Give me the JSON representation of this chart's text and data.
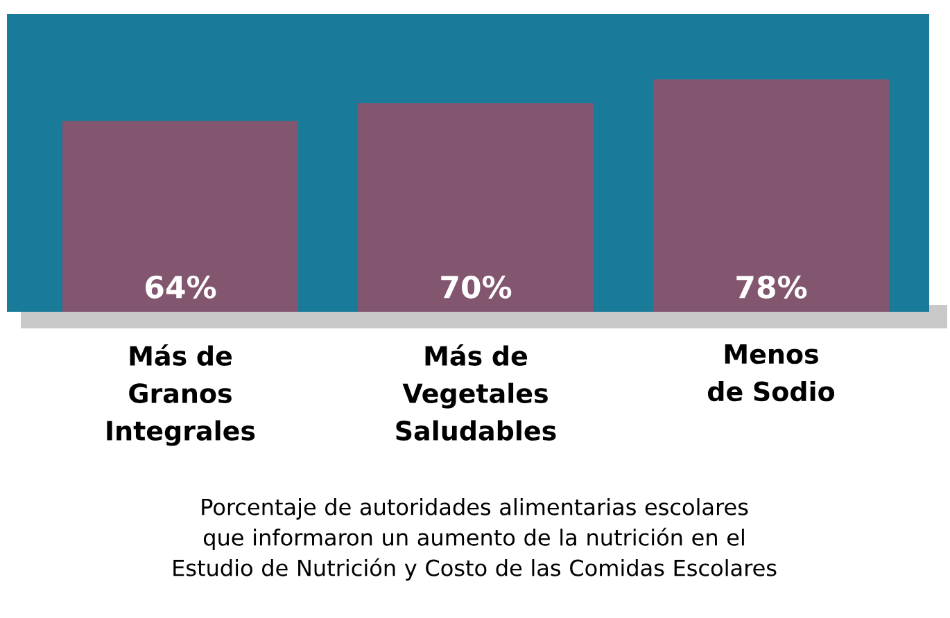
{
  "chart_data": {
    "type": "bar",
    "categories": [
      "Más de Granos Integrales",
      "Más de Vegetales Saludables",
      "Menos de Sodio"
    ],
    "values": [
      64,
      70,
      78
    ],
    "value_labels": [
      "64%",
      "70%",
      "78%"
    ],
    "color": "#83566f",
    "ylim": [
      0,
      100
    ],
    "bands": [
      {
        "axis": "y",
        "from": 0,
        "to": 100,
        "color": "#1a7a99"
      }
    ],
    "annotations": [
      "Porcentaje de autoridades alimentarias escolares que informaron un aumento de la nutrición en el Estudio de Nutrición y Costo de las Comidas Escolares"
    ]
  }
}
